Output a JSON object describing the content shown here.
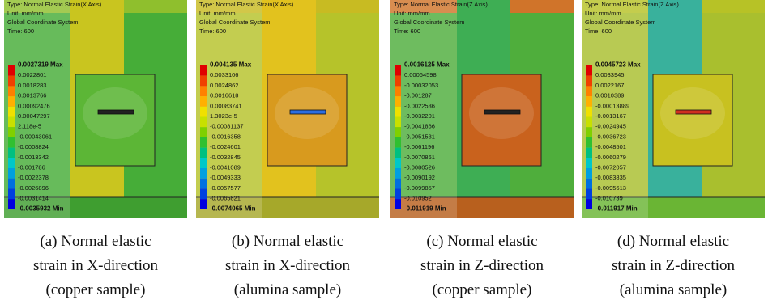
{
  "panels": [
    {
      "header": [
        "Type: Normal Elastic Strain(X Axis)",
        "Unit: mm/mm",
        "Global Coordinate System",
        "Time: 600"
      ],
      "legend": [
        "0.0027319 Max",
        "0.0022801",
        "0.0018283",
        "0.0013766",
        "0.00092476",
        "0.00047297",
        "2.118e-5",
        "-0.00043061",
        "-0.0008824",
        "-0.0013342",
        "-0.001786",
        "-0.0022378",
        "-0.0026896",
        "-0.0031414",
        "-0.0035932 Min"
      ],
      "caption": [
        "(a) Normal elastic",
        "strain in X-direction",
        "(copper sample)"
      ]
    },
    {
      "header": [
        "Type: Normal Elastic Strain(X Axis)",
        "Unit: mm/mm",
        "Global Coordinate System",
        "Time: 600"
      ],
      "legend": [
        "0.004135 Max",
        "0.0033106",
        "0.0024862",
        "0.0016618",
        "0.00083741",
        "1.3023e-5",
        "-0.00081137",
        "-0.0016358",
        "-0.0024601",
        "-0.0032845",
        "-0.0041089",
        "-0.0049333",
        "-0.0057577",
        "-0.0065821",
        "-0.0074065 Min"
      ],
      "caption": [
        "(b) Normal elastic",
        "strain in X-direction",
        "(alumina sample)"
      ]
    },
    {
      "header": [
        "Type: Normal Elastic Strain(Z Axis)",
        "Unit: mm/mm",
        "Global Coordinate System",
        "Time: 600"
      ],
      "legend": [
        "0.0016125 Max",
        "0.00064598",
        "-0.00032053",
        "-0.001287",
        "-0.0022536",
        "-0.0032201",
        "-0.0041866",
        "-0.0051531",
        "-0.0061196",
        "-0.0070861",
        "-0.0080526",
        "-0.0090192",
        "-0.0099857",
        "-0.010952",
        "-0.011919 Min"
      ],
      "caption": [
        "(c) Normal elastic",
        "strain in Z-direction",
        "(copper sample)"
      ]
    },
    {
      "header": [
        "Type: Normal Elastic Strain(Z Axis)",
        "Unit: mm/mm",
        "Global Coordinate System",
        "Time: 600"
      ],
      "legend": [
        "0.0045723 Max",
        "0.0033945",
        "0.0022167",
        "0.0010389",
        "-0.00013889",
        "-0.0013167",
        "-0.0024945",
        "-0.0036723",
        "-0.0048501",
        "-0.0060279",
        "-0.0072057",
        "-0.0083835",
        "-0.0095613",
        "-0.010739",
        "-0.011917 Min"
      ],
      "caption": [
        "(d) Normal elastic",
        "strain in Z-direction",
        "(alumina sample)"
      ]
    }
  ]
}
